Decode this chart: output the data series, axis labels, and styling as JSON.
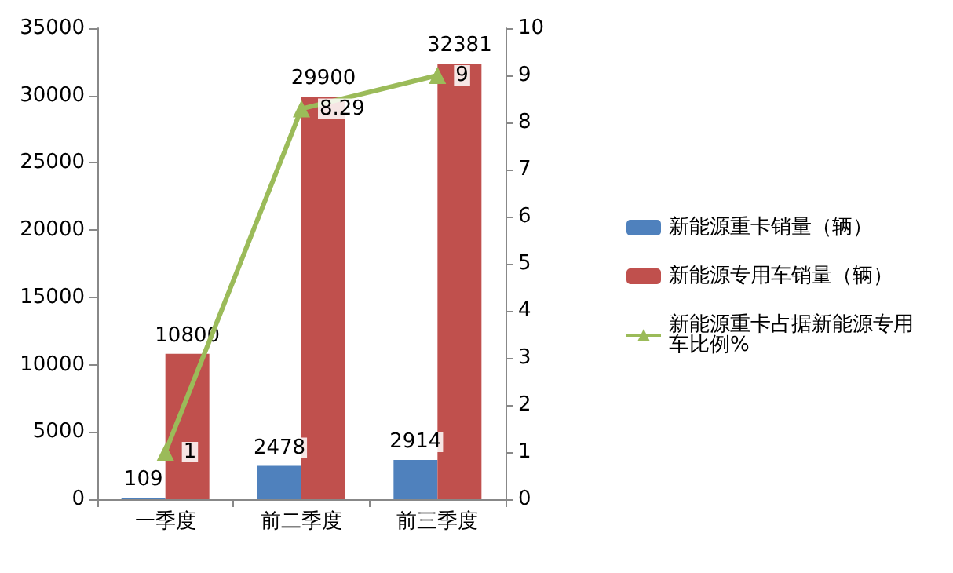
{
  "chart_data": {
    "type": "bar",
    "categories": [
      "一季度",
      "前二季度",
      "前三季度"
    ],
    "series": [
      {
        "name": "新能源重卡销量（辆）",
        "color": "#4f81bd",
        "values": [
          109,
          2478,
          2914
        ]
      },
      {
        "name": "新能源专用车销量（辆）",
        "color": "#c0504d",
        "values": [
          10800,
          29900,
          32381
        ]
      },
      {
        "name": "新能源重卡占据新能源专用车比例%",
        "type": "line",
        "axis": "y2",
        "color": "#9bbb59",
        "values": [
          1,
          8.29,
          9
        ]
      }
    ],
    "ylim": [
      0,
      35000
    ],
    "yticks": [
      0,
      5000,
      10000,
      15000,
      20000,
      25000,
      30000,
      35000
    ],
    "y2lim": [
      0,
      10
    ],
    "y2ticks": [
      0,
      1,
      2,
      3,
      4,
      5,
      6,
      7,
      8,
      9,
      10
    ],
    "data_labels": true,
    "legend": "right",
    "marker": "triangle",
    "grid": false
  }
}
